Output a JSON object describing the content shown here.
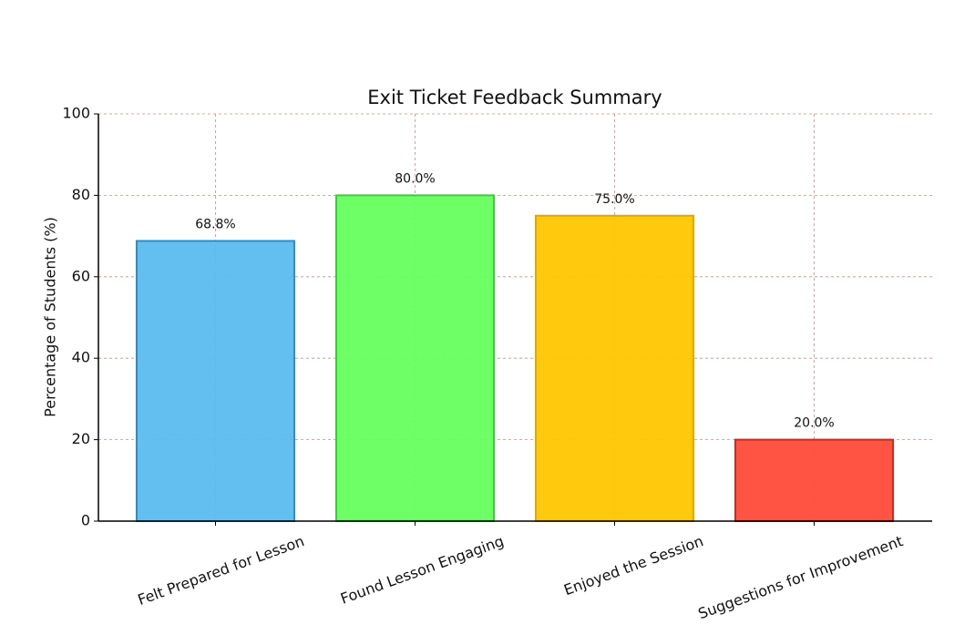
{
  "chart_data": {
    "type": "bar",
    "title": "Exit Ticket Feedback Summary",
    "y_label": "Percentage of Students (%)",
    "categories": [
      "Felt Prepared for Lesson",
      "Found Lesson Engaging",
      "Enjoyed the Session",
      "Suggestions for Improvement"
    ],
    "values": [
      68.8,
      80.0,
      75.0,
      20.0
    ],
    "value_labels": [
      "68.8%",
      "80.0%",
      "75.0%",
      "20.0%"
    ],
    "colors": [
      "#5bbcef",
      "#66ff5e",
      "#ffc700",
      "#ff4b3a"
    ],
    "edge_colors": [
      "#2f8ec4",
      "#3ccc3a",
      "#e0a800",
      "#cc2a1e"
    ],
    "ylim": [
      0,
      100
    ],
    "yticks": [
      0,
      20,
      40,
      60,
      80,
      100
    ],
    "grid": true
  }
}
